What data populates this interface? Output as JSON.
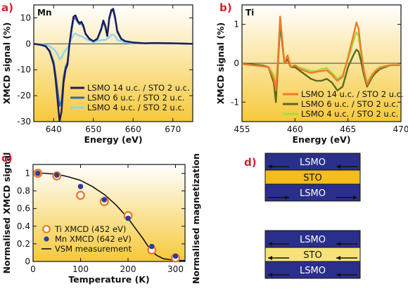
{
  "panel_labels": {
    "a": "a)",
    "b": "b)",
    "c": "c)",
    "d": "d)"
  },
  "colors": {
    "lsmo_14": "#1e1a5e",
    "lsmo_6": "#2e6fa6",
    "lsmo_4": "#8fd4ef",
    "ti_14": "#f07a28",
    "ti_6": "#5a6b1e",
    "ti_4": "#a8dc3a",
    "gradient_top": "#ffffff",
    "gradient_bottom": "#f6c93a",
    "lsmo_layer": "#2b2f8c",
    "sto_layer": "#f4bd18",
    "sto_layer_light": "#f7e27a",
    "ti_marker": "#f07a28",
    "mn_marker": "#2b3d9a"
  },
  "chart_data": [
    {
      "id": "a",
      "type": "line",
      "element_label": "Mn",
      "xlabel": "Energy (eV)",
      "ylabel": "XMCD signal (%)",
      "xlim": [
        635,
        675
      ],
      "ylim": [
        -30,
        15
      ],
      "xticks": [
        640,
        650,
        660,
        670
      ],
      "yticks": [
        -30,
        -20,
        -10,
        0,
        10
      ],
      "zero_line": true,
      "legend": "bottom-right",
      "series": [
        {
          "name": "LSMO 14 u.c. / STO 2 u.c.",
          "color_key": "lsmo_14",
          "x": [
            635,
            637,
            638,
            639,
            640,
            640.5,
            641,
            641.5,
            642,
            642.5,
            643,
            643.5,
            644,
            644.5,
            645,
            645.5,
            646,
            646.5,
            647,
            647.5,
            648,
            649,
            650,
            651,
            652,
            652.5,
            653,
            653.5,
            654,
            654.5,
            655,
            655.5,
            656,
            657,
            658,
            660,
            663,
            665,
            670,
            675
          ],
          "y": [
            0,
            -0.5,
            -1,
            -3,
            -8,
            -14,
            -22,
            -30,
            -26,
            -15,
            -10,
            -8,
            0,
            6,
            10.5,
            11,
            9,
            8,
            8.5,
            7,
            4,
            2,
            1,
            2,
            6,
            9,
            7,
            3,
            10,
            13,
            13.5,
            10,
            5,
            2,
            1,
            0.5,
            0.2,
            0.3,
            0.2,
            0
          ]
        },
        {
          "name": "LSMO 6 u.c. / STO 2 u.c.",
          "color_key": "lsmo_6",
          "x": [
            635,
            637,
            638,
            639,
            640,
            640.5,
            641,
            641.5,
            642,
            642.5,
            643,
            643.5,
            644,
            644.5,
            645,
            645.5,
            646,
            646.5,
            647,
            647.5,
            648,
            649,
            650,
            651,
            652,
            652.5,
            653,
            653.5,
            654,
            654.5,
            655,
            655.5,
            656,
            657,
            658,
            660,
            663,
            665,
            670,
            675
          ],
          "y": [
            0,
            -0.4,
            -0.9,
            -2.7,
            -7,
            -12,
            -18,
            -24,
            -22,
            -13,
            -9,
            -7,
            0,
            5,
            9.5,
            10,
            8.5,
            7.5,
            8,
            6.5,
            3.8,
            1.8,
            1,
            1.8,
            5.5,
            8.5,
            6.5,
            3,
            9.5,
            12.5,
            12.8,
            9.5,
            4.5,
            1.8,
            1,
            0.5,
            0.2,
            0.3,
            0.2,
            0
          ]
        },
        {
          "name": "LSMO 4 u.c. / STO 2 u.c.",
          "color_key": "lsmo_4",
          "x": [
            635,
            637,
            638,
            639,
            640,
            640.5,
            641,
            641.5,
            642,
            642.5,
            643,
            643.5,
            644,
            644.5,
            645,
            645.5,
            646,
            646.5,
            647,
            648,
            650,
            652,
            653,
            654,
            654.5,
            655,
            655.5,
            656,
            658,
            660,
            665,
            670,
            675
          ],
          "y": [
            0,
            -0.2,
            -0.5,
            -1,
            -2,
            -3,
            -4,
            -6,
            -5.5,
            -3.5,
            -2.5,
            -1.5,
            0,
            2,
            3.5,
            4,
            3.5,
            3,
            3,
            2,
            0.6,
            1.5,
            1.5,
            2.5,
            3.5,
            3.5,
            3,
            1.5,
            0.5,
            0.2,
            0.1,
            0.1,
            0
          ]
        }
      ]
    },
    {
      "id": "b",
      "type": "line",
      "element_label": "Ti",
      "xlabel": "Energy (eV)",
      "ylabel": "XMCD signal (%)",
      "xlim": [
        455,
        470
      ],
      "ylim": [
        -1.5,
        1.5
      ],
      "xticks": [
        455,
        460,
        465,
        470
      ],
      "yticks": [
        -1,
        0,
        1
      ],
      "zero_line": true,
      "legend": "bottom-right",
      "series": [
        {
          "name": "LSMO 14 u.c. / STO 2 u.c.",
          "color_key": "ti_14",
          "x": [
            455,
            456,
            457,
            457.5,
            458,
            458.2,
            458.4,
            458.6,
            458.8,
            459,
            459.3,
            459.6,
            460,
            460.5,
            461,
            461.5,
            462,
            462.5,
            463,
            463.5,
            464,
            464.5,
            465,
            465.5,
            465.8,
            466,
            466.2,
            466.5,
            466.8,
            467,
            467.3,
            467.6,
            468,
            468.5,
            469,
            470
          ],
          "y": [
            -0.02,
            -0.05,
            -0.08,
            -0.1,
            -0.4,
            -0.7,
            0.1,
            1.2,
            0.6,
            0.0,
            0.2,
            -0.1,
            -0.05,
            -0.15,
            -0.2,
            -0.25,
            -0.22,
            -0.2,
            -0.18,
            -0.3,
            -0.45,
            -0.35,
            0.15,
            0.7,
            1.05,
            0.9,
            0.4,
            -0.2,
            -0.55,
            -0.45,
            -0.3,
            -0.2,
            -0.12,
            -0.08,
            -0.05,
            -0.05
          ]
        },
        {
          "name": "LSMO 6 u.c. / STO 2 u.c.",
          "color_key": "ti_6",
          "x": [
            455,
            456,
            457,
            457.5,
            458,
            458.2,
            458.4,
            458.6,
            458.8,
            459,
            459.3,
            459.6,
            460,
            460.5,
            461,
            461.5,
            462,
            462.5,
            463,
            463.5,
            464,
            464.5,
            465,
            465.5,
            465.8,
            466,
            466.2,
            466.5,
            466.8,
            467,
            467.3,
            467.6,
            468,
            468.5,
            469,
            470
          ],
          "y": [
            -0.02,
            -0.03,
            -0.06,
            -0.1,
            -0.5,
            -1.0,
            0.0,
            1.0,
            0.5,
            0.0,
            0.1,
            -0.1,
            -0.1,
            -0.2,
            -0.3,
            -0.4,
            -0.45,
            -0.45,
            -0.4,
            -0.5,
            -0.7,
            -0.6,
            -0.1,
            0.2,
            0.35,
            0.3,
            0.1,
            -0.3,
            -0.6,
            -0.5,
            -0.35,
            -0.25,
            -0.15,
            -0.1,
            -0.05,
            -0.05
          ]
        },
        {
          "name": "LSMO 4 u.c. / STO 2 u.c.",
          "color_key": "ti_4",
          "x": [
            455,
            456,
            457,
            457.5,
            458,
            458.2,
            458.4,
            458.6,
            458.8,
            459,
            459.3,
            459.6,
            460,
            460.5,
            461,
            461.5,
            462,
            462.5,
            463,
            463.5,
            464,
            464.5,
            465,
            465.5,
            465.8,
            466,
            466.2,
            466.5,
            466.8,
            467,
            467.3,
            467.6,
            468,
            468.5,
            469,
            470
          ],
          "y": [
            -0.02,
            -0.04,
            -0.07,
            -0.1,
            -0.3,
            -0.6,
            0.1,
            1.05,
            0.55,
            0.0,
            0.15,
            -0.1,
            -0.05,
            -0.12,
            -0.15,
            -0.2,
            -0.2,
            -0.15,
            -0.12,
            -0.25,
            -0.4,
            -0.3,
            0.1,
            0.55,
            0.8,
            0.7,
            0.3,
            -0.15,
            -0.5,
            -0.4,
            -0.28,
            -0.18,
            -0.1,
            -0.07,
            -0.05,
            -0.05
          ]
        }
      ]
    },
    {
      "id": "c",
      "type": "scatter",
      "xlabel": "Temperature (K)",
      "ylabel": "Normalised XMCD signal",
      "ylabel_right": "Normalised magnetization",
      "xlim": [
        0,
        320
      ],
      "ylim": [
        0,
        1.1
      ],
      "xticks": [
        0,
        100,
        200,
        300
      ],
      "yticks": [
        0,
        0.2,
        0.4,
        0.6,
        0.8,
        1
      ],
      "ytick_labels": [
        "0",
        "0.2",
        "0.4",
        "0.6",
        "0.8",
        "1"
      ],
      "legend": "bottom-left",
      "series": [
        {
          "name": "Ti XMCD (452 eV)",
          "marker": "open-circle",
          "color_key": "ti_marker",
          "x": [
            10,
            50,
            100,
            150,
            200,
            250,
            300
          ],
          "y": [
            1.0,
            0.97,
            0.75,
            0.68,
            0.52,
            0.13,
            0.04
          ]
        },
        {
          "name": "Mn XMCD (642 eV)",
          "marker": "filled-circle",
          "color_key": "mn_marker",
          "x": [
            10,
            50,
            100,
            150,
            200,
            250,
            300
          ],
          "y": [
            1.0,
            0.98,
            0.85,
            0.7,
            0.49,
            0.17,
            0.06
          ]
        },
        {
          "name": "VSM measurement",
          "marker": "line",
          "color_key": "line_black",
          "x": [
            0,
            25,
            50,
            75,
            100,
            125,
            150,
            175,
            200,
            215,
            230,
            245,
            260,
            275,
            290,
            310,
            320
          ],
          "y": [
            1.0,
            1.0,
            0.99,
            0.96,
            0.92,
            0.85,
            0.76,
            0.64,
            0.49,
            0.38,
            0.27,
            0.15,
            0.07,
            0.03,
            0.02,
            0.01,
            0.01
          ]
        }
      ]
    }
  ],
  "diagram_d": {
    "top": [
      {
        "label": "LSMO",
        "arrows": "left"
      },
      {
        "label": "STO",
        "arrows": "none"
      },
      {
        "label": "LSMO",
        "arrows": "right"
      }
    ],
    "bottom": [
      {
        "label": "LSMO",
        "arrows": "left"
      },
      {
        "label": "STO",
        "arrows": "left"
      },
      {
        "label": "LSMO",
        "arrows": "left"
      }
    ]
  }
}
